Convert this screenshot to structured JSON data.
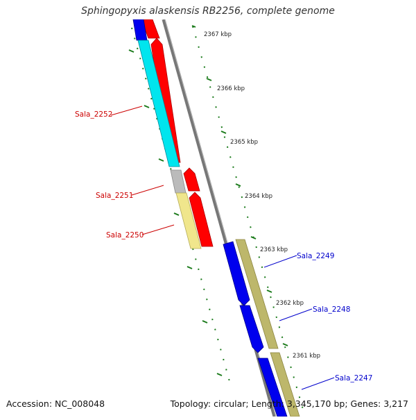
{
  "title": "Sphingopyxis alaskensis RB2256, complete genome",
  "accession": "Accession: NC_008048",
  "summary": "Topology: circular; Length: 3,345,170 bp; Genes: 3,217",
  "colors": {
    "reverse_label": "#cc0000",
    "forward_label": "#0000cc",
    "tick": "#1a7a1a",
    "backbone": "#777777"
  },
  "scale_labels": [
    "2367 kbp",
    "2366 kbp",
    "2365 kbp",
    "2364 kbp",
    "2363 kbp",
    "2362 kbp",
    "2361 kbp"
  ],
  "gene_labels": {
    "reverse": [
      "Sala_2252",
      "Sala_2251",
      "Sala_2250"
    ],
    "forward": [
      "Sala_2249",
      "Sala_2248",
      "Sala_2247"
    ]
  }
}
